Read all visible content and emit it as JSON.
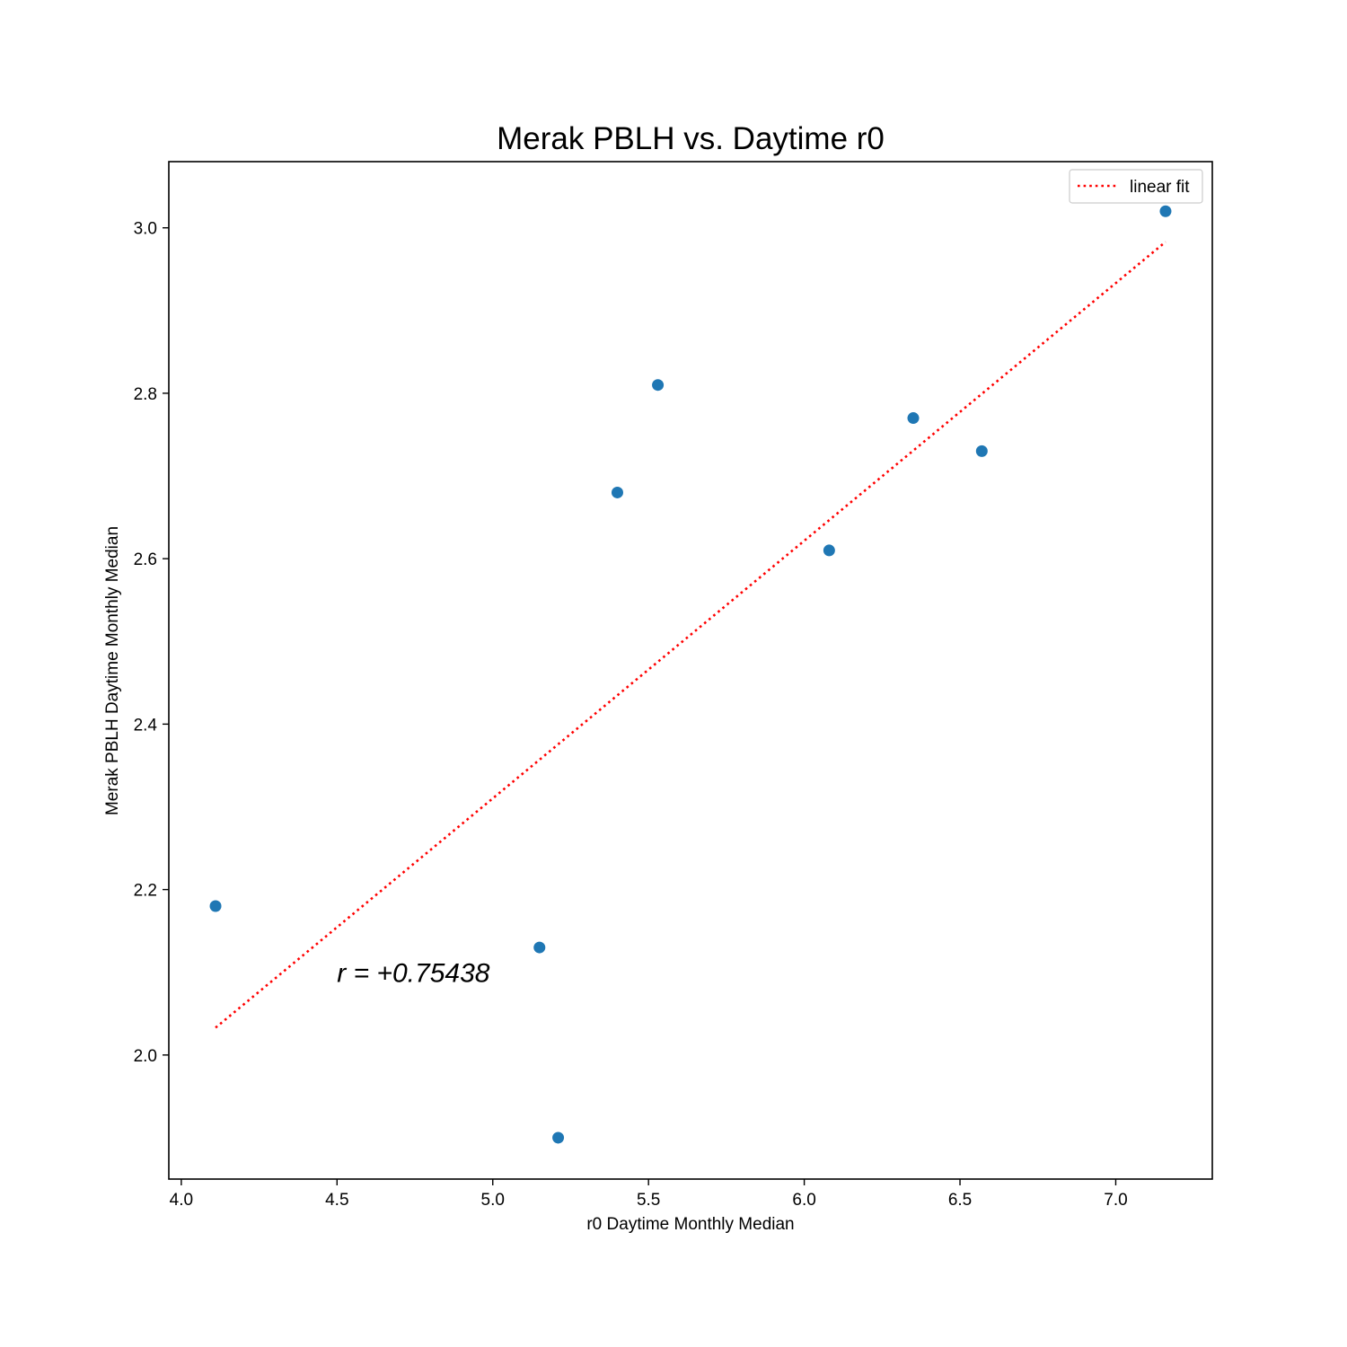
{
  "chart_data": {
    "type": "scatter",
    "title": "Merak PBLH vs. Daytime r0",
    "xlabel": "r0 Daytime Monthly Median",
    "ylabel": "Merak PBLH Daytime Monthly Median",
    "xlim": [
      3.96,
      7.31
    ],
    "ylim": [
      1.85,
      3.08
    ],
    "xticks": [
      4.0,
      4.5,
      5.0,
      5.5,
      6.0,
      6.5,
      7.0
    ],
    "yticks": [
      2.0,
      2.2,
      2.4,
      2.6,
      2.8,
      3.0
    ],
    "xtick_labels": [
      "4.0",
      "4.5",
      "5.0",
      "5.5",
      "6.0",
      "6.5",
      "7.0"
    ],
    "ytick_labels": [
      "2.0",
      "2.2",
      "2.4",
      "2.6",
      "2.8",
      "3.0"
    ],
    "grid": false,
    "legend_position": "top-right",
    "series": [
      {
        "type": "scatter",
        "color": "#1f77b4",
        "x": [
          4.11,
          5.15,
          5.21,
          5.4,
          5.53,
          6.08,
          6.35,
          6.57,
          7.16
        ],
        "y": [
          2.18,
          2.13,
          1.9,
          2.68,
          2.81,
          2.61,
          2.77,
          2.73,
          3.02
        ]
      },
      {
        "type": "line",
        "name": "linear fit",
        "style": "dotted",
        "color": "#ff0000",
        "x": [
          4.11,
          7.16
        ],
        "y": [
          2.033,
          2.983
        ]
      }
    ],
    "annotation": {
      "text": "r = +0.75438",
      "x": 4.5,
      "y": 2.1
    }
  }
}
